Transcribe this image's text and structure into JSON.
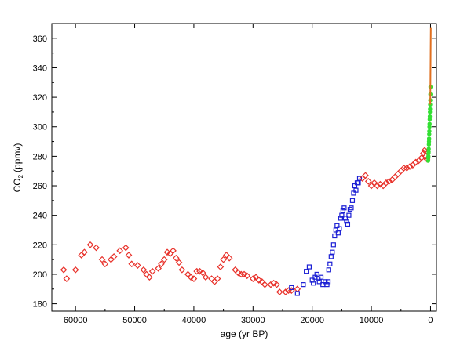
{
  "chart_data": {
    "type": "scatter",
    "title": "",
    "xlabel": "age (yr BP)",
    "ylabel": "CO",
    "ylabel_sub": "2",
    "ylabel_unit": "(ppmv)",
    "xlim": [
      64000,
      -1000
    ],
    "ylim": [
      175,
      370
    ],
    "x_reversed": true,
    "grid": false,
    "legend": false,
    "x_ticks": [
      60000,
      50000,
      40000,
      30000,
      20000,
      10000,
      0
    ],
    "x_tick_labels": [
      "60000",
      "50000",
      "40000",
      "30000",
      "20000",
      "10000",
      "0"
    ],
    "y_ticks": [
      180,
      200,
      220,
      240,
      260,
      280,
      300,
      320,
      340,
      360
    ],
    "y_tick_labels": [
      "180",
      "200",
      "220",
      "240",
      "260",
      "280",
      "300",
      "320",
      "340",
      "360"
    ],
    "series": [
      {
        "marker": "diamond",
        "color": "#e8312a",
        "x": [
          62000,
          61500,
          60000,
          59000,
          58500,
          57500,
          56500,
          55500,
          55000,
          54000,
          53500,
          52500,
          51500,
          51000,
          50500,
          49500,
          48500,
          48000,
          47500,
          47000,
          46000,
          45500,
          45000,
          44500,
          44000,
          43500,
          43000,
          42500,
          42000,
          41000,
          40500,
          40000,
          39500,
          39000,
          38500,
          38000,
          37000,
          36500,
          36000,
          35500,
          35000,
          34500,
          34000,
          33000,
          32500,
          32000,
          31500,
          31000,
          30000,
          29500,
          29000,
          28500,
          28000,
          27000,
          26500,
          26000,
          25500,
          24500,
          24000,
          23500,
          22500
        ],
        "y": [
          203,
          197,
          203,
          213,
          215,
          220,
          218,
          210,
          207,
          210,
          212,
          216,
          218,
          213,
          207,
          206,
          203,
          200,
          198,
          202,
          204,
          207,
          210,
          215,
          214,
          216,
          211,
          208,
          203,
          200,
          198,
          197,
          202,
          202,
          201,
          198,
          197,
          195,
          197,
          205,
          210,
          213,
          211,
          203,
          201,
          200,
          200,
          199,
          197,
          198,
          196,
          195,
          193,
          193,
          194,
          193,
          188,
          188,
          189,
          189,
          190
        ]
      },
      {
        "marker": "square",
        "color": "#1b1fd4",
        "x": [
          23500,
          22500,
          21500,
          21000,
          20500,
          20000,
          19800,
          19500,
          19200,
          19000,
          18800,
          18500,
          18200,
          17800,
          17500,
          17300,
          17200,
          17000,
          16800,
          16600,
          16400,
          16200,
          16000,
          15800,
          15600,
          15400,
          15200,
          15000,
          14800,
          14600,
          14400,
          14200,
          14000,
          13800,
          13600,
          13400,
          13200,
          13000,
          12800,
          12600,
          12400,
          12200,
          12000
        ],
        "y": [
          191,
          187,
          193,
          202,
          205,
          196,
          194,
          198,
          200,
          197,
          195,
          198,
          193,
          195,
          193,
          195,
          203,
          207,
          212,
          215,
          220,
          226,
          230,
          233,
          228,
          231,
          238,
          240,
          243,
          245,
          238,
          236,
          234,
          240,
          244,
          245,
          250,
          255,
          260,
          257,
          262,
          262,
          265
        ]
      },
      {
        "marker": "diamond",
        "color": "#e8312a",
        "x": [
          11500,
          11000,
          10500,
          10000,
          9500,
          9000,
          8500,
          8000,
          7500,
          7000,
          6500,
          6000,
          5500,
          5000,
          4500,
          4000,
          3500,
          3000,
          2500,
          2000,
          1500,
          1200,
          1000,
          800,
          600
        ],
        "y": [
          265,
          267,
          263,
          260,
          262,
          260,
          261,
          260,
          262,
          263,
          264,
          266,
          268,
          270,
          272,
          272,
          273,
          274,
          276,
          277,
          279,
          282,
          284,
          280,
          278
        ]
      },
      {
        "marker": "circle",
        "color": "#33e033",
        "x": [
          400,
          380,
          360,
          340,
          320,
          300,
          280,
          260,
          240,
          220,
          200,
          180,
          160,
          140,
          120,
          100,
          80,
          60,
          40,
          20,
          0
        ],
        "y": [
          277,
          279,
          280,
          282,
          283,
          285,
          288,
          290,
          292,
          295,
          297,
          300,
          302,
          305,
          307,
          310,
          312,
          315,
          318,
          322,
          327
        ]
      },
      {
        "marker": "line",
        "color": "#e07020",
        "x": [
          50,
          40,
          30,
          20,
          10,
          0,
          -10,
          -20,
          -30,
          -40,
          -50
        ],
        "y": [
          315,
          318,
          322,
          328,
          335,
          340,
          345,
          352,
          357,
          362,
          367
        ]
      }
    ]
  }
}
